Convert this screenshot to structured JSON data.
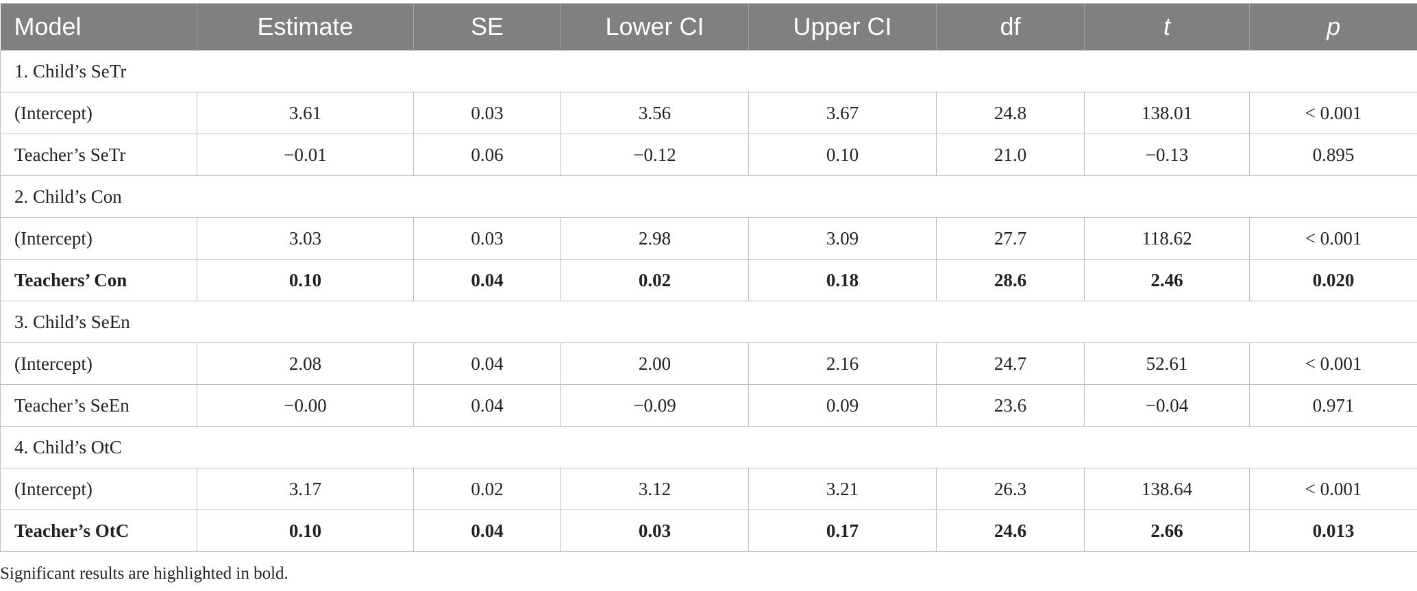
{
  "table": {
    "headers": [
      "Model",
      "Estimate",
      "SE",
      "Lower CI",
      "Upper CI",
      "df",
      "t",
      "p"
    ],
    "rows": [
      {
        "type": "section",
        "label": "1. Child’s SeTr"
      },
      {
        "type": "data",
        "bold": false,
        "label": "(Intercept)",
        "values": [
          "3.61",
          "0.03",
          "3.56",
          "3.67",
          "24.8",
          "138.01",
          "< 0.001"
        ]
      },
      {
        "type": "data",
        "bold": false,
        "label": "Teacher’s SeTr",
        "values": [
          "−0.01",
          "0.06",
          "−0.12",
          "0.10",
          "21.0",
          "−0.13",
          "0.895"
        ]
      },
      {
        "type": "section",
        "label": "2. Child’s Con"
      },
      {
        "type": "data",
        "bold": false,
        "label": "(Intercept)",
        "values": [
          "3.03",
          "0.03",
          "2.98",
          "3.09",
          "27.7",
          "118.62",
          "< 0.001"
        ]
      },
      {
        "type": "data",
        "bold": true,
        "label": "Teachers’ Con",
        "values": [
          "0.10",
          "0.04",
          "0.02",
          "0.18",
          "28.6",
          "2.46",
          "0.020"
        ]
      },
      {
        "type": "section",
        "label": "3. Child’s SeEn"
      },
      {
        "type": "data",
        "bold": false,
        "label": "(Intercept)",
        "values": [
          "2.08",
          "0.04",
          "2.00",
          "2.16",
          "24.7",
          "52.61",
          "< 0.001"
        ]
      },
      {
        "type": "data",
        "bold": false,
        "label": "Teacher’s SeEn",
        "values": [
          "−0.00",
          "0.04",
          "−0.09",
          "0.09",
          "23.6",
          "−0.04",
          "0.971"
        ]
      },
      {
        "type": "section",
        "label": "4. Child’s OtC"
      },
      {
        "type": "data",
        "bold": false,
        "label": "(Intercept)",
        "values": [
          "3.17",
          "0.02",
          "3.12",
          "3.21",
          "26.3",
          "138.64",
          "< 0.001"
        ]
      },
      {
        "type": "data",
        "bold": true,
        "label": "Teacher’s OtC",
        "values": [
          "0.10",
          "0.04",
          "0.03",
          "0.17",
          "24.6",
          "2.66",
          "0.013"
        ]
      }
    ]
  },
  "footnote": "Significant results are highlighted in bold.",
  "colors": {
    "header_bg": "#808080",
    "header_text": "#ffffff",
    "border": "#bdbdbd"
  }
}
